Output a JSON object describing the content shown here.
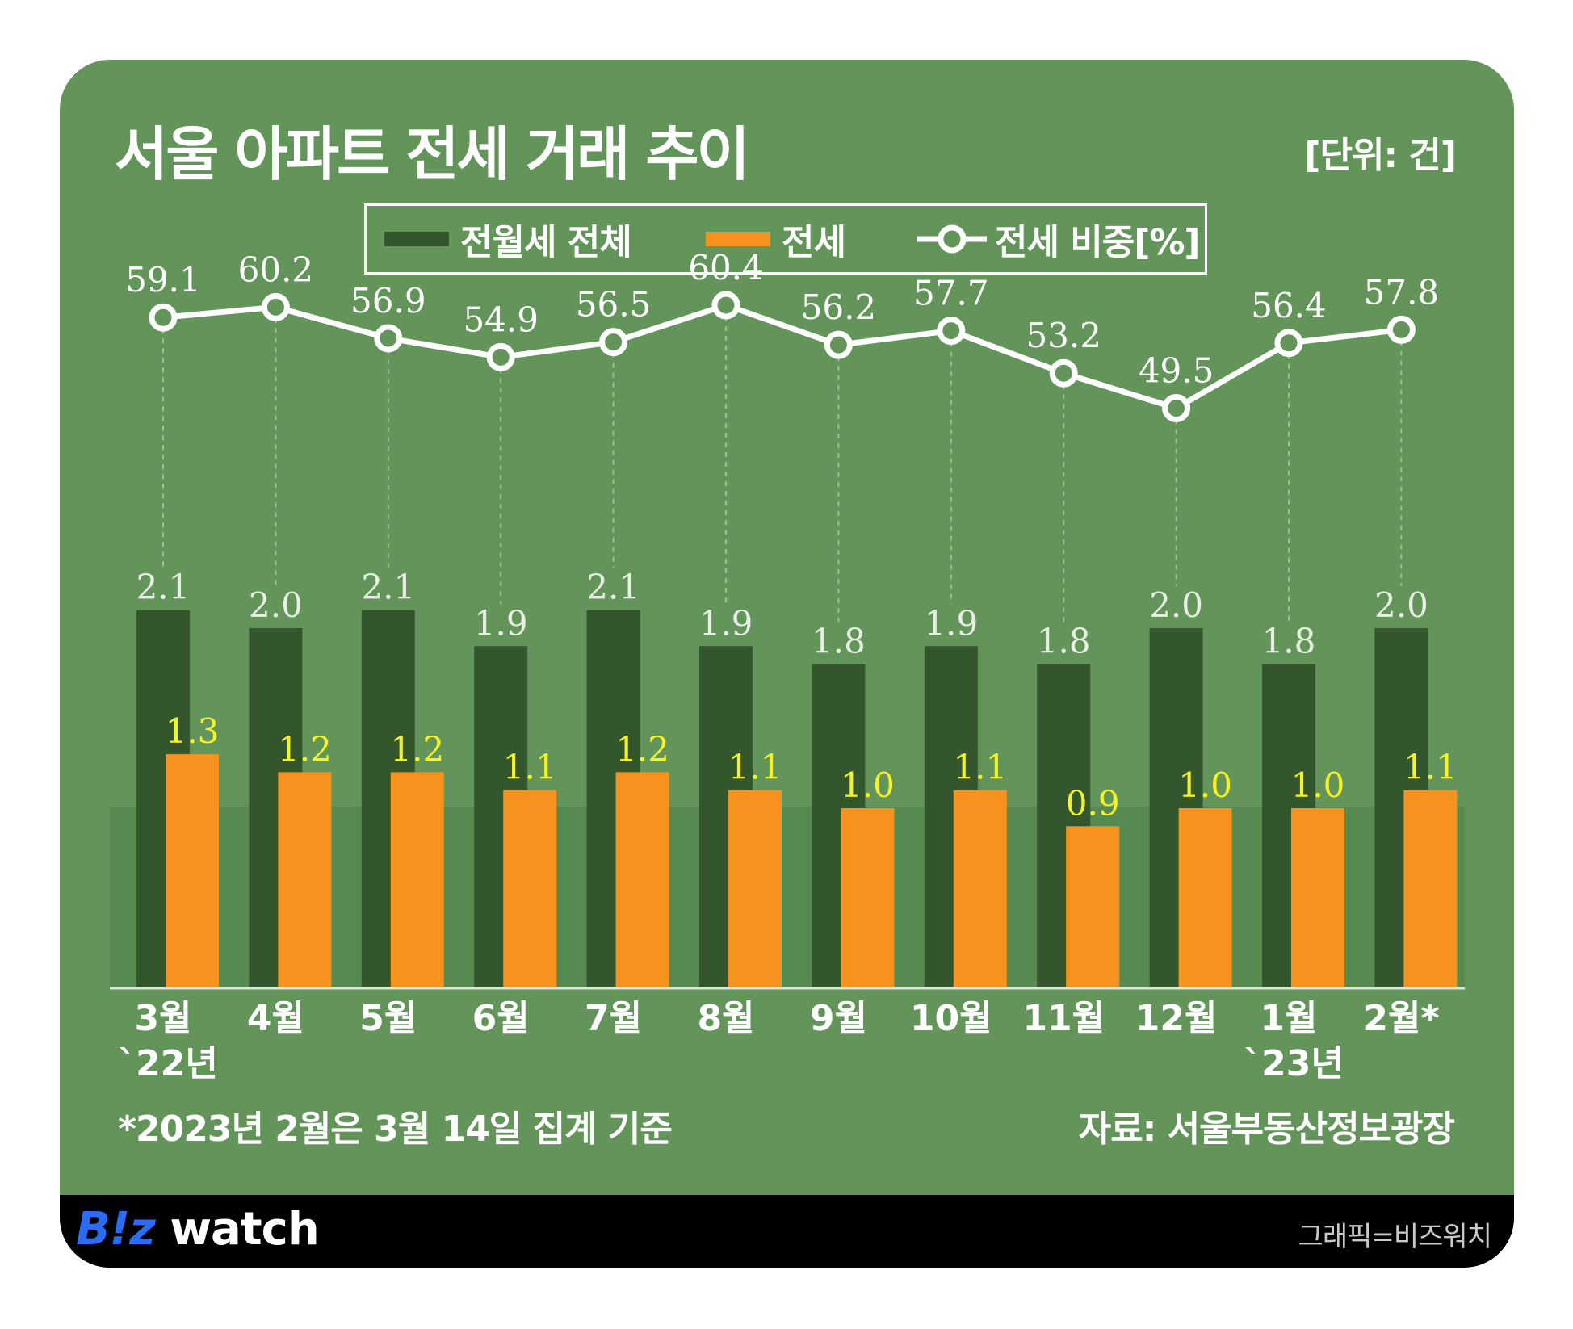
{
  "header": {
    "title": "서울 아파트 전세 거래 추이",
    "unit": "[단위: 건]"
  },
  "legend": {
    "total_label": "전월세 전체",
    "jeonse_label": "전세",
    "ratio_label": "전세 비중[%]"
  },
  "colors": {
    "background": "#63955b",
    "total_bar": "#33562d",
    "jeonse_bar": "#f7921e",
    "band": "#578a51",
    "line": "#ffffff",
    "total_label": "#e8efe4",
    "jeonse_label": "#f6f22a"
  },
  "chart_data": {
    "type": "bar",
    "categories": [
      "3월",
      "4월",
      "5월",
      "6월",
      "7월",
      "8월",
      "9월",
      "10월",
      "11월",
      "12월",
      "1월",
      "2월*"
    ],
    "category_sublabels": [
      "`22년",
      "",
      "",
      "",
      "",
      "",
      "",
      "",
      "",
      "",
      "`23년",
      ""
    ],
    "series": [
      {
        "name": "전월세 전체",
        "type": "bar",
        "values": [
          2.1,
          2.0,
          2.1,
          1.9,
          2.1,
          1.9,
          1.8,
          1.9,
          1.8,
          2.0,
          1.8,
          2.0
        ]
      },
      {
        "name": "전세",
        "type": "bar",
        "values": [
          1.3,
          1.2,
          1.2,
          1.1,
          1.2,
          1.1,
          1.0,
          1.1,
          0.9,
          1.0,
          1.0,
          1.1
        ]
      },
      {
        "name": "전세 비중[%]",
        "type": "line",
        "values": [
          59.1,
          60.2,
          56.9,
          54.9,
          56.5,
          60.4,
          56.2,
          57.7,
          53.2,
          49.5,
          56.4,
          57.8
        ]
      }
    ],
    "title": "서울 아파트 전세 거래 추이",
    "unit": "[단위: 건]"
  },
  "footnote": "*2023년 2월은 3월 14일 집계 기준",
  "source": "자료: 서울부동산정보광장",
  "footer": {
    "logo_brand": "B!z",
    "logo_word": " watch",
    "credit": "그래픽=비즈워치"
  }
}
